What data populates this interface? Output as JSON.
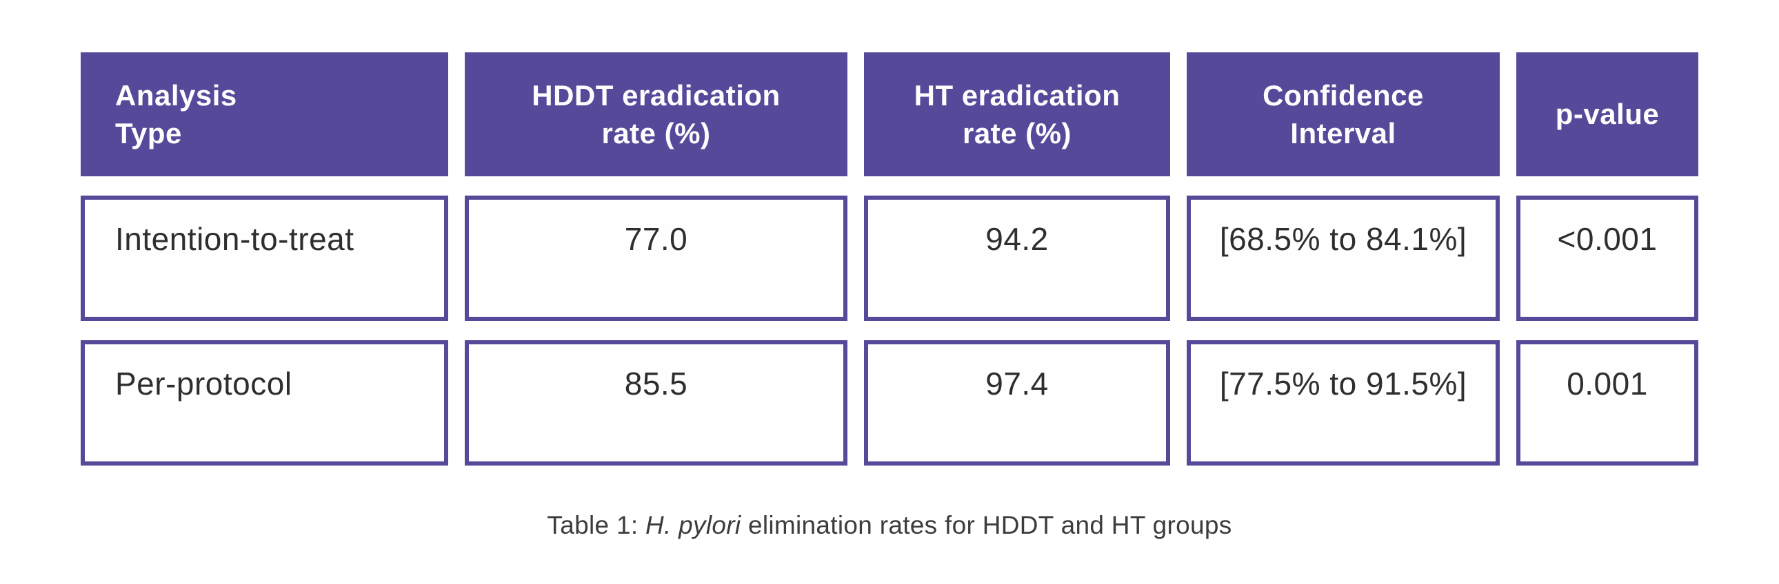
{
  "page": {
    "background_color": "#ffffff",
    "accent_purple": "#57499a",
    "body_text_color": "#2e2e2e"
  },
  "table": {
    "headers": [
      {
        "label": "Analysis\nType"
      },
      {
        "label": "HDDT eradication\nrate (%)"
      },
      {
        "label": "HT eradication\nrate (%)"
      },
      {
        "label": "Confidence\nInterval"
      },
      {
        "label": "p-value"
      }
    ],
    "rows": [
      {
        "analysis_type": "Intention-to-treat",
        "hddt_rate": "77.0",
        "ht_rate": "94.2",
        "confidence_interval": "[68.5% to 84.1%]",
        "p_value": "<0.001"
      },
      {
        "analysis_type": "Per-protocol",
        "hddt_rate": "85.5",
        "ht_rate": "97.4",
        "confidence_interval": "[77.5% to 91.5%]",
        "p_value": "0.001"
      }
    ]
  },
  "caption": {
    "prefix": "Table 1: ",
    "italic": "H. pylori",
    "suffix": " elimination rates for HDDT and HT groups"
  },
  "chart_data": {
    "type": "table",
    "title": "Table 1: H. pylori elimination rates for HDDT and HT groups",
    "columns": [
      "Analysis Type",
      "HDDT eradication rate (%)",
      "HT eradication rate (%)",
      "Confidence Interval",
      "p-value"
    ],
    "rows": [
      [
        "Intention-to-treat",
        77.0,
        94.2,
        "[68.5% to 84.1%]",
        "<0.001"
      ],
      [
        "Per-protocol",
        85.5,
        97.4,
        "[77.5% to 91.5%]",
        "0.001"
      ]
    ]
  }
}
